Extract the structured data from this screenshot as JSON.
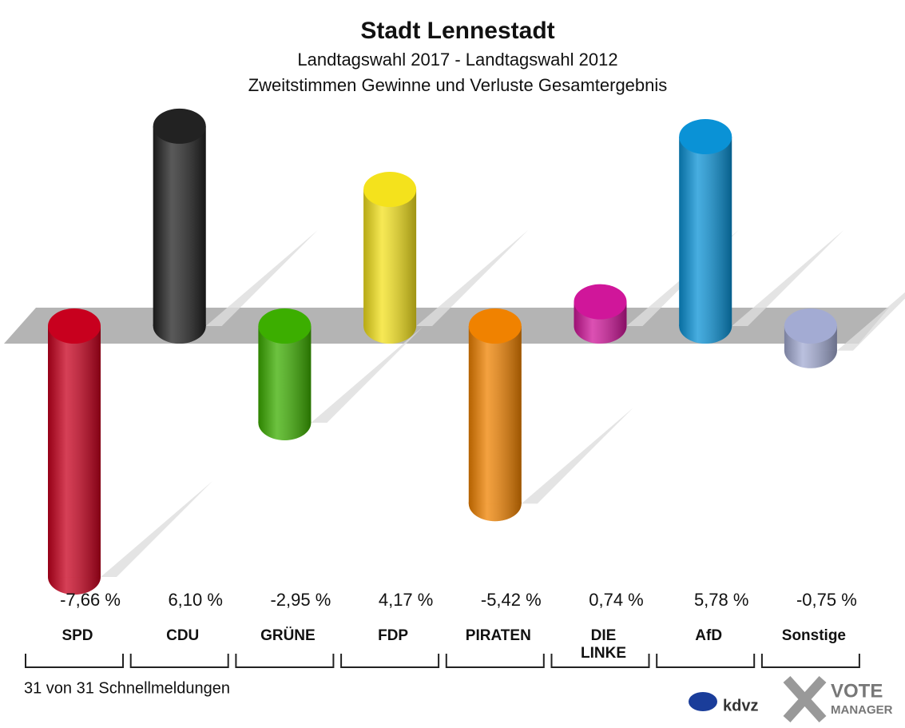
{
  "chart_data": {
    "type": "bar",
    "title": "Stadt Lennestadt",
    "subtitle": "Landtagswahl 2017 - Landtagswahl 2012",
    "subtitle2": "Zweitstimmen Gewinne und Verluste Gesamtergebnis",
    "categories": [
      "SPD",
      "CDU",
      "GRÜNE",
      "FDP",
      "PIRATEN",
      "DIE LINKE",
      "AfD",
      "Sonstige"
    ],
    "values": [
      -7.66,
      6.1,
      -2.95,
      4.17,
      -5.42,
      0.74,
      5.78,
      -0.75
    ],
    "value_labels": [
      "-7,66 %",
      "6,10 %",
      "-2,95 %",
      "4,17 %",
      "-5,42 %",
      "0,74 %",
      "5,78 %",
      "-0,75 %"
    ],
    "colors": [
      "#c8001e",
      "#222222",
      "#3cae00",
      "#f4e21c",
      "#f08200",
      "#d0169a",
      "#0a92d6",
      "#a3abd3"
    ],
    "footer": "31 von 31 Schnellmeldungen",
    "logo_kdvz": "kdvz",
    "logo_vote": "VOTE",
    "logo_manager": "MANAGER"
  }
}
